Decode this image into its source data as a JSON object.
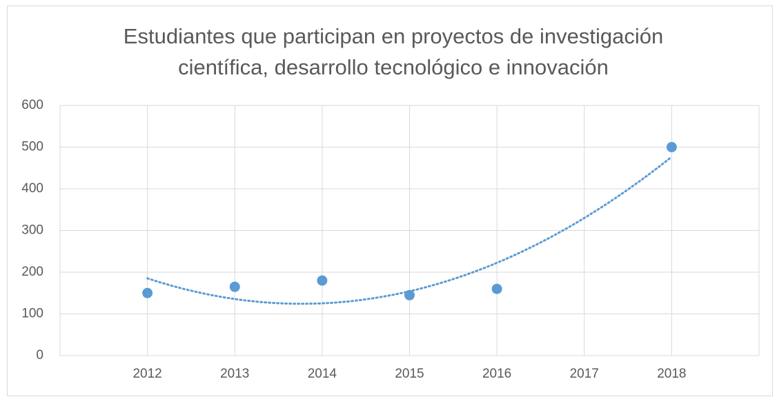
{
  "chart_data": {
    "type": "scatter",
    "title": [
      "Estudiantes que participan en proyectos de investigación",
      "científica, desarrollo tecnológico e innovación"
    ],
    "x": [
      2012,
      2013,
      2014,
      2015,
      2016,
      2018
    ],
    "values": [
      150,
      165,
      180,
      145,
      160,
      500
    ],
    "color": "#5b9bd5",
    "trendline": {
      "type": "polynomial",
      "order": 2
    },
    "xlim": [
      2011,
      2019
    ],
    "xticks": [
      2012,
      2013,
      2014,
      2015,
      2016,
      2017,
      2018
    ],
    "ylim": [
      0,
      600
    ],
    "yticks": [
      0,
      100,
      200,
      300,
      400,
      500,
      600
    ],
    "grid": true
  }
}
